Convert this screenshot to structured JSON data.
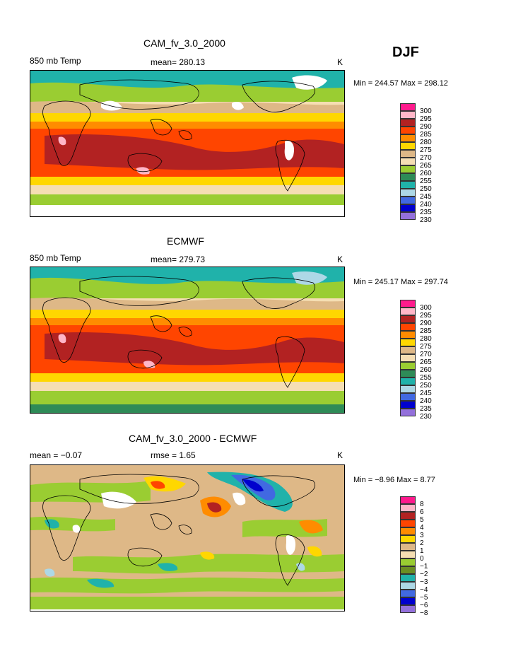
{
  "season": "DJF",
  "panels": [
    {
      "title": "CAM_fv_3.0_2000",
      "left_label": "850 mb Temp",
      "center_label": "mean= 280.13",
      "units": "K",
      "stats": "Min = 244.57 Max = 298.12",
      "legend": [
        "300",
        "295",
        "290",
        "285",
        "280",
        "275",
        "270",
        "265",
        "260",
        "255",
        "250",
        "245",
        "240",
        "235",
        "230"
      ]
    },
    {
      "title": "ECMWF",
      "left_label": "850 mb Temp",
      "center_label": "mean= 279.73",
      "units": "K",
      "stats": "Min = 245.17 Max = 297.74",
      "legend": [
        "300",
        "295",
        "290",
        "285",
        "280",
        "275",
        "270",
        "265",
        "260",
        "255",
        "250",
        "245",
        "240",
        "235",
        "230"
      ]
    },
    {
      "title": "CAM_fv_3.0_2000 - ECMWF",
      "left_label": "mean =   −0.07",
      "center_label": "rmse =    1.65",
      "units": "K",
      "stats": "Min =   −8.96 Max =    8.77",
      "legend": [
        "8",
        "6",
        "5",
        "4",
        "3",
        "2",
        "1",
        "0",
        "−1",
        "−2",
        "−3",
        "−4",
        "−5",
        "−6",
        "−8"
      ]
    }
  ],
  "colors": {
    "temp_scale": [
      "#ff1a8c",
      "#ffb6c8",
      "#b22222",
      "#ff4500",
      "#ff8c00",
      "#ffd700",
      "#deb887",
      "#f5deb3",
      "#9acd32",
      "#2e8b57",
      "#20b2aa",
      "#add8e6",
      "#4169e1",
      "#0000cd",
      "#9370db"
    ],
    "diff_scale": [
      "#ff1a8c",
      "#ffb6c8",
      "#b22222",
      "#ff4500",
      "#ff8c00",
      "#ffd700",
      "#deb887",
      "#f5deb3",
      "#9acd32",
      "#6b8e23",
      "#20b2aa",
      "#add8e6",
      "#4169e1",
      "#0000cd",
      "#9370db"
    ]
  }
}
